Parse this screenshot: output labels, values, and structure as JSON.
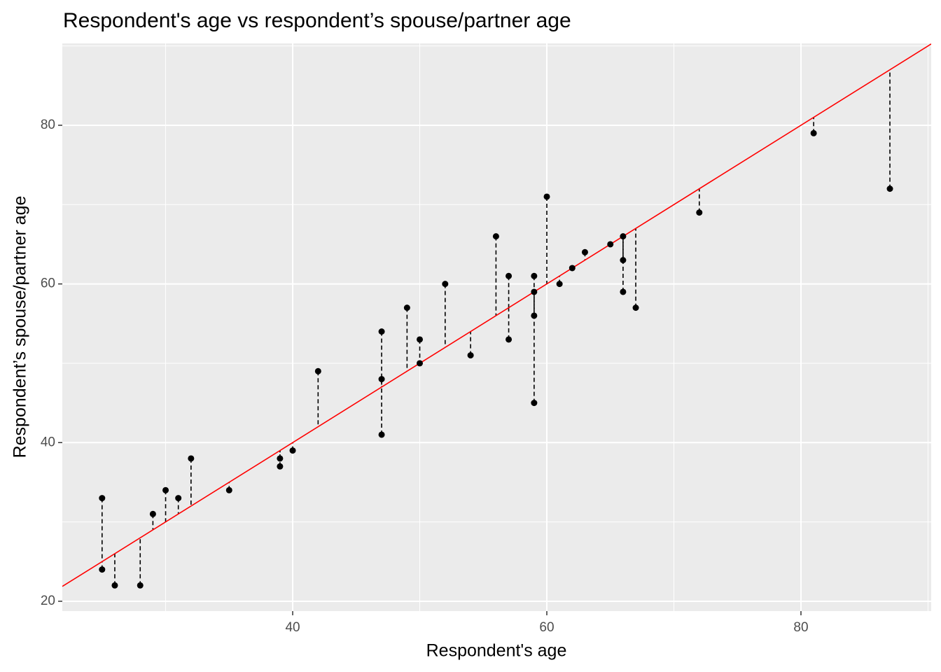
{
  "chart_data": {
    "type": "scatter",
    "title": "Respondent's age vs respondent’s spouse/partner age",
    "x_label": "Respondent's age",
    "y_label": "Respondent’s spouse/partner age",
    "x": [
      25,
      25,
      26,
      28,
      29,
      30,
      31,
      32,
      35,
      39,
      39,
      40,
      42,
      47,
      47,
      47,
      49,
      50,
      50,
      52,
      54,
      56,
      57,
      57,
      59,
      59,
      59,
      59,
      60,
      61,
      62,
      63,
      65,
      66,
      66,
      66,
      67,
      72,
      81,
      87
    ],
    "values": [
      33,
      24,
      22,
      22,
      31,
      34,
      33,
      38,
      34,
      38,
      37,
      39,
      49,
      54,
      48,
      41,
      57,
      53,
      50,
      60,
      51,
      66,
      61,
      53,
      61,
      59,
      56,
      45,
      71,
      60,
      62,
      64,
      65,
      66,
      63,
      59,
      57,
      69,
      79,
      72
    ],
    "color": "#000000",
    "reference_line": {
      "slope": 1,
      "intercept": 0,
      "color": "#ff0000"
    },
    "residual_segments": true,
    "xlim": [
      21.87,
      90.25
    ],
    "ylim": [
      18.76,
      90.32
    ],
    "xticks": [
      40,
      60,
      80
    ],
    "yticks": [
      20,
      40,
      60,
      80
    ],
    "xminor": [
      30,
      50,
      70,
      90
    ],
    "yminor": [
      30,
      50,
      70,
      90
    ],
    "grid": true
  }
}
